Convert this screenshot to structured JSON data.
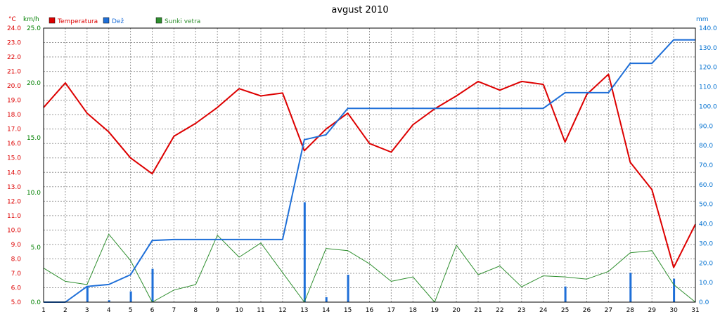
{
  "chart_data": {
    "type": "line",
    "title": "avgust 2010",
    "x": [
      1,
      2,
      3,
      4,
      5,
      6,
      7,
      8,
      9,
      10,
      11,
      12,
      13,
      14,
      15,
      16,
      17,
      18,
      19,
      20,
      21,
      22,
      23,
      24,
      25,
      26,
      27,
      28,
      29,
      30,
      31
    ],
    "axes": {
      "temp": {
        "unit": "°C",
        "min": 5.0,
        "max": 24.0,
        "step": 1.0,
        "color": "#dd0000"
      },
      "wind": {
        "unit": "km/h",
        "min": 0.0,
        "max": 25.0,
        "step": 5.0,
        "color": "#008000"
      },
      "rain": {
        "unit": "mm",
        "min": 0.0,
        "max": 140.0,
        "step": 10.0,
        "color": "#0070d0"
      }
    },
    "legend": [
      {
        "label": "Temperatura",
        "color": "#dd0000"
      },
      {
        "label": "Dež",
        "color": "#1e6fd8"
      },
      {
        "label": "Sunki vetra",
        "color": "#2f8f2f"
      }
    ],
    "series": [
      {
        "name": "Temperatura",
        "axis": "temp",
        "color": "#dd0000",
        "values": [
          18.5,
          20.2,
          18.1,
          16.8,
          15.0,
          13.9,
          16.5,
          17.4,
          18.5,
          19.8,
          19.3,
          19.5,
          15.5,
          17.0,
          18.1,
          16.0,
          15.4,
          17.3,
          18.4,
          19.3,
          20.3,
          19.7,
          20.3,
          20.1,
          16.1,
          19.4,
          20.8,
          14.7,
          12.8,
          7.4,
          10.4
        ]
      },
      {
        "name": "Sunki vetra",
        "axis": "wind",
        "color": "#2f8f2f",
        "values": [
          3.1,
          1.9,
          1.6,
          6.2,
          3.8,
          0.0,
          1.1,
          1.6,
          6.1,
          4.1,
          5.4,
          2.7,
          0.0,
          4.9,
          4.7,
          3.5,
          1.9,
          2.3,
          0.0,
          5.2,
          2.5,
          3.3,
          1.4,
          2.4,
          2.3,
          2.1,
          2.8,
          4.5,
          4.7,
          1.6,
          0.0
        ]
      },
      {
        "name": "Dež",
        "axis": "rain",
        "color": "#1e6fd8",
        "values": [
          0.0,
          0.0,
          8.0,
          9.0,
          14.0,
          31.5,
          32.0,
          32.0,
          32.0,
          32.0,
          32.0,
          32.0,
          83.0,
          85.5,
          99.0,
          99.0,
          99.0,
          99.0,
          99.0,
          99.0,
          99.0,
          99.0,
          99.0,
          99.0,
          107.0,
          107.0,
          107.0,
          122.0,
          122.0,
          134.0,
          134.0
        ]
      },
      {
        "name": "Dež",
        "axis": "rain",
        "color": "#1e6fd8",
        "type": "bar",
        "values": [
          0,
          0,
          8,
          1,
          5.5,
          17,
          0,
          0,
          0,
          0,
          0,
          0,
          51,
          2.5,
          14,
          0,
          0,
          0,
          0,
          0,
          0,
          0,
          0,
          0,
          8,
          0,
          0,
          15,
          0,
          12,
          0
        ]
      }
    ]
  }
}
